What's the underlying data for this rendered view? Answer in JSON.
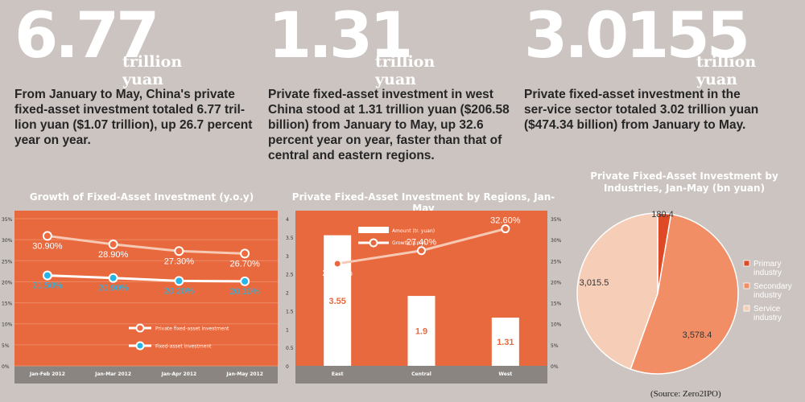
{
  "stats": [
    {
      "number": "6.77",
      "unit": "trillion yuan",
      "text": "From January to May, China's private fixed-asset investment totaled 6.77 tril-lion yuan ($1.07 trillion), up 26.7 percent year on year."
    },
    {
      "number": "1.31",
      "unit": "trillion yuan",
      "text": "Private fixed-asset investment in west China stood at 1.31 trillion yuan ($206.58 billion) from January to May, up 32.6 percent year on year, faster than that of central and eastern regions."
    },
    {
      "number": "3.0155",
      "unit": "trillion yuan",
      "text": "Private fixed-asset investment in the ser-vice sector totaled 3.02 trillion yuan ($474.34 billion) from January to May."
    }
  ],
  "source": "(Source: Zero2IPO)",
  "colors": {
    "orange": "#e8693e",
    "light_orange": "#f28e66",
    "pale": "#f6cdb7",
    "dark_orange": "#dd4a25",
    "blue": "#27b5e8",
    "bg": "#cbc4c0"
  },
  "chart_data": [
    {
      "type": "line",
      "title": "Growth of Fixed-Asset Investment (y.o.y)",
      "categories": [
        "Jan-Feb 2012",
        "Jan-Mar 2012",
        "Jan-Apr 2012",
        "Jan-May 2012"
      ],
      "yticks": [
        "35%",
        "30%",
        "25%",
        "20%",
        "15%",
        "10%",
        "5%",
        "0%"
      ],
      "ylim": [
        0,
        35
      ],
      "series": [
        {
          "name": "Private fixed-asset investment",
          "values": [
            30.9,
            28.9,
            27.3,
            26.7
          ],
          "labels": [
            "30.90%",
            "28.90%",
            "27.30%",
            "26.70%"
          ]
        },
        {
          "name": "Fixed-asset investment",
          "values": [
            21.5,
            20.9,
            20.2,
            20.1
          ],
          "labels": [
            "21.50%",
            "20.90%",
            "20.20%",
            "20.10%"
          ]
        }
      ],
      "legend": "bottom-right",
      "grid": true
    },
    {
      "type": "bar",
      "title": "Private Fixed-Asset Investment by Regions, Jan-May",
      "categories": [
        "East",
        "Central",
        "West"
      ],
      "yticks_left": [
        "4",
        "3.5",
        "3",
        "2.5",
        "2",
        "1.5",
        "1",
        "0.5",
        "0"
      ],
      "yticks_right": [
        "35%",
        "30%",
        "25%",
        "20%",
        "15%",
        "10%",
        "5%",
        "0%"
      ],
      "ylim_left": [
        0,
        4
      ],
      "ylim_right": [
        0,
        35
      ],
      "series": [
        {
          "name": "Amount (tr. yuan)",
          "kind": "bar",
          "values": [
            3.55,
            1.9,
            1.31
          ],
          "labels": [
            "3.55",
            "1.9",
            "1.31"
          ]
        },
        {
          "name": "Growth (y.o.y)",
          "kind": "line",
          "values": [
            24.3,
            27.4,
            32.6
          ],
          "labels": [
            "24.30%",
            "27.40%",
            "32.60%"
          ]
        }
      ],
      "legend": "top-left"
    },
    {
      "type": "pie",
      "title": "Private Fixed-Asset Investment by Industries, Jan-May (bn yuan)",
      "slices": [
        {
          "name": "Primary industry",
          "value": 180.4,
          "label": "180.4"
        },
        {
          "name": "Secondary industry",
          "value": 3578.4,
          "label": "3,578.4"
        },
        {
          "name": "Service industry",
          "value": 3015.5,
          "label": "3,015.5"
        }
      ],
      "legend": "right"
    }
  ]
}
